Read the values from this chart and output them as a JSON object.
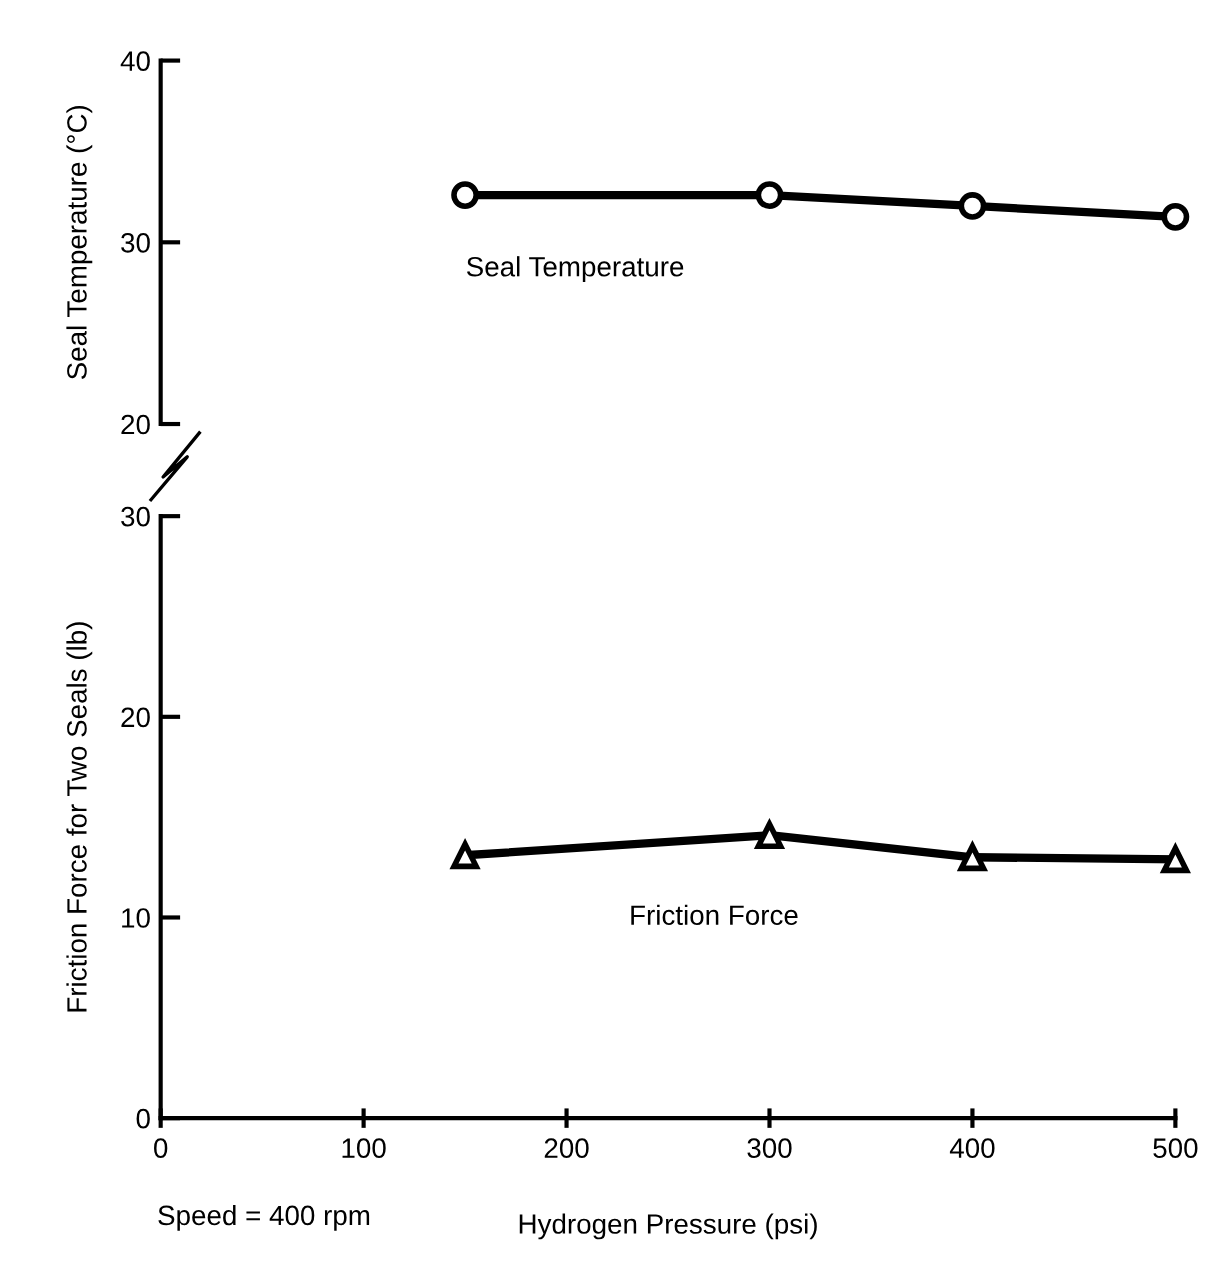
{
  "chart_data": [
    {
      "type": "line",
      "ylabel": "Seal Temperature (°C)",
      "x": [
        150,
        300,
        400,
        500
      ],
      "xlim": [
        0,
        500
      ],
      "ylim": [
        20,
        40
      ],
      "yticks": [
        20,
        30,
        40
      ],
      "tick_labels": "y",
      "series": [
        {
          "name": "Seal Temperature",
          "color": "#000000",
          "marker": "circle",
          "values": [
            32.6,
            32.6,
            32.0,
            31.4
          ]
        }
      ]
    },
    {
      "type": "line",
      "xlabel": "Hydrogen Pressure (psi)",
      "ylabel": "Friction Force for Two Seals (lb)",
      "x": [
        150,
        300,
        400,
        500
      ],
      "xlim": [
        0,
        500
      ],
      "xticks": [
        0,
        100,
        200,
        300,
        400,
        500
      ],
      "ylim": [
        0,
        30
      ],
      "yticks": [
        0,
        10,
        20,
        30
      ],
      "annotations": [
        "Speed = 400 rpm"
      ],
      "series": [
        {
          "name": "Friction Force",
          "color": "#000000",
          "marker": "triangle",
          "values": [
            13.1,
            14.1,
            13.0,
            12.9
          ]
        }
      ]
    }
  ]
}
